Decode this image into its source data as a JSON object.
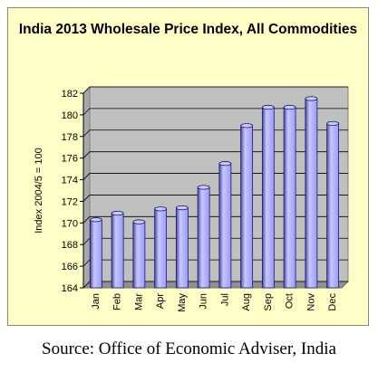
{
  "chart_data": {
    "type": "bar",
    "style": "3d-cylinder",
    "title": "India 2013 Wholesale Price Index, All Commodities",
    "ylabel": "Index 2004/5 = 100",
    "xlabel": "",
    "categories": [
      "Jan",
      "Feb",
      "Mar",
      "Apr",
      "May",
      "Jun",
      "Jul",
      "Aug",
      "Sep",
      "Oct",
      "Nov",
      "Dec"
    ],
    "values": [
      170.3,
      170.9,
      170.1,
      171.3,
      171.4,
      173.3,
      175.5,
      179.0,
      180.7,
      180.7,
      181.5,
      179.2
    ],
    "ylim": [
      164,
      182
    ],
    "yticks": [
      164,
      166,
      168,
      170,
      172,
      174,
      176,
      178,
      180,
      182
    ],
    "grid": true,
    "legend": "none",
    "colors": {
      "bar": "#9999ff",
      "bar_highlight": "#c8c8ff",
      "bar_shadow": "#4a4aa8",
      "plot_background": "#c0c0c0",
      "frame_background": "#ffffc8"
    }
  },
  "caption": "Source: Office of Economic Adviser, India"
}
